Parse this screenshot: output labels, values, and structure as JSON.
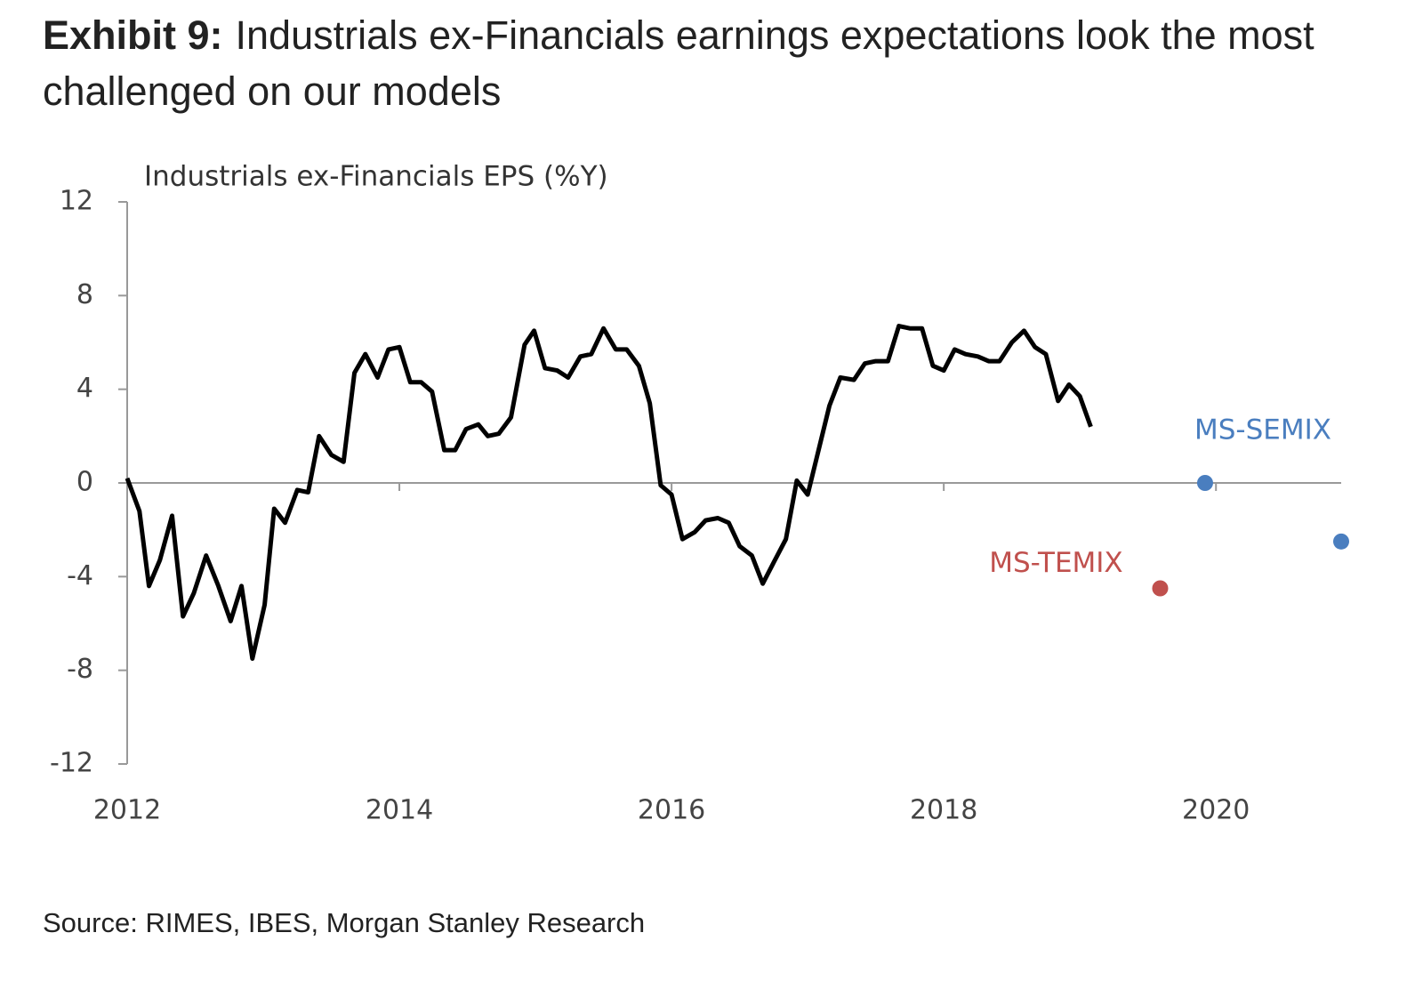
{
  "chart_data": {
    "type": "line",
    "title_label": "Exhibit 9:",
    "title": "Industrials ex-Financials earnings expectations look the most challenged on our models",
    "y_label": "Industrials ex-Financials EPS (%Y)",
    "source": "Source: RIMES, IBES, Morgan Stanley Research",
    "xlim": [
      2012,
      2020.92
    ],
    "xticks": [
      2012,
      2014,
      2016,
      2018,
      2020
    ],
    "ylim": [
      -12,
      12
    ],
    "yticks": [
      12,
      8,
      4,
      0,
      -4,
      -8,
      -12
    ],
    "series": [
      {
        "type": "line",
        "color": "#000000",
        "x": [
          2012.0,
          2012.09,
          2012.16,
          2012.24,
          2012.33,
          2012.41,
          2012.49,
          2012.58,
          2012.67,
          2012.76,
          2012.84,
          2012.92,
          2013.01,
          2013.08,
          2013.16,
          2013.25,
          2013.33,
          2013.41,
          2013.5,
          2013.59,
          2013.67,
          2013.75,
          2013.84,
          2013.92,
          2014.0,
          2014.08,
          2014.16,
          2014.24,
          2014.33,
          2014.41,
          2014.49,
          2014.58,
          2014.65,
          2014.73,
          2014.82,
          2014.92,
          2014.99,
          2015.07,
          2015.16,
          2015.24,
          2015.33,
          2015.41,
          2015.5,
          2015.59,
          2015.67,
          2015.76,
          2015.84,
          2015.92,
          2016.0,
          2016.08,
          2016.17,
          2016.25,
          2016.34,
          2016.42,
          2016.5,
          2016.59,
          2016.67,
          2016.75,
          2016.84,
          2016.92,
          2017.0,
          2017.08,
          2017.16,
          2017.24,
          2017.34,
          2017.42,
          2017.5,
          2017.59,
          2017.67,
          2017.75,
          2017.84,
          2017.92,
          2018.0,
          2018.08,
          2018.16,
          2018.25,
          2018.33,
          2018.41,
          2018.5,
          2018.59,
          2018.67,
          2018.75,
          2018.84,
          2018.92,
          2019.0,
          2019.08
        ],
        "values": [
          0.2,
          -1.2,
          -4.4,
          -3.3,
          -1.4,
          -5.7,
          -4.7,
          -3.1,
          -4.4,
          -5.9,
          -4.4,
          -7.5,
          -5.2,
          -1.1,
          -1.7,
          -0.3,
          -0.4,
          2.0,
          1.2,
          0.9,
          4.7,
          5.5,
          4.5,
          5.7,
          5.8,
          4.3,
          4.3,
          3.9,
          1.4,
          1.4,
          2.3,
          2.5,
          2.0,
          2.1,
          2.8,
          5.9,
          6.5,
          4.9,
          4.8,
          4.5,
          5.4,
          5.5,
          6.6,
          5.7,
          5.7,
          5.0,
          3.4,
          -0.1,
          -0.5,
          -2.4,
          -2.1,
          -1.6,
          -1.5,
          -1.7,
          -2.7,
          -3.1,
          -4.3,
          -3.4,
          -2.4,
          0.1,
          -0.5,
          1.4,
          3.3,
          4.5,
          4.4,
          5.1,
          5.2,
          5.2,
          6.7,
          6.6,
          6.6,
          5.0,
          4.8,
          5.7,
          5.5,
          5.4,
          5.2,
          5.2,
          6.0,
          6.5,
          5.8,
          5.5,
          3.5,
          4.2,
          3.7,
          2.4
        ]
      },
      {
        "type": "scatter",
        "name": "MS-SEMIX",
        "color": "#4a7ebf",
        "x": [
          2019.92,
          2020.92
        ],
        "values": [
          0,
          -2.5
        ]
      },
      {
        "type": "scatter",
        "name": "MS-TEMIX",
        "color": "#c0504d",
        "x": [
          2019.59
        ],
        "values": [
          -4.5
        ]
      }
    ]
  }
}
